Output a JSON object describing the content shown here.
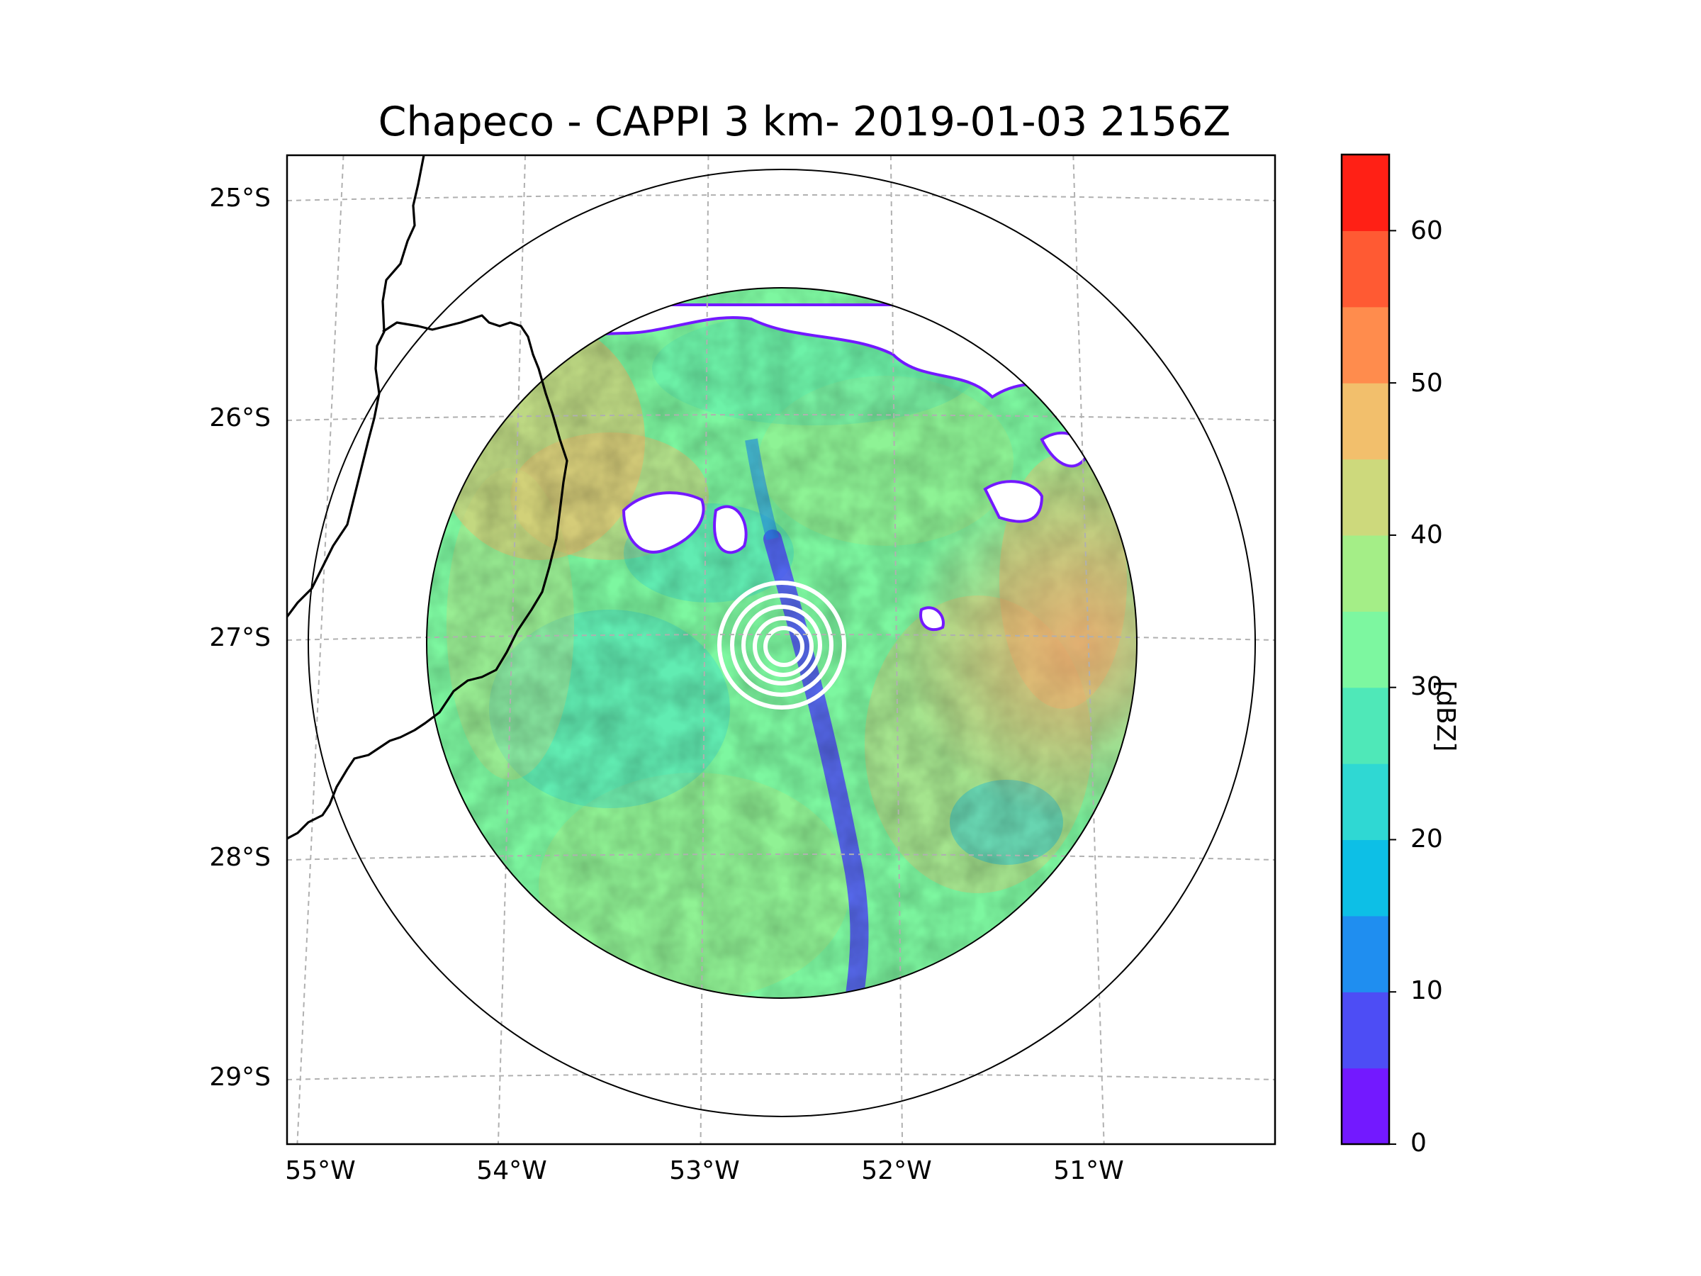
{
  "title": "Chapeco - CAPPI 3 km- 2019-01-03 2156Z",
  "map": {
    "lat_labels": [
      "25°S",
      "26°S",
      "27°S",
      "28°S",
      "29°S"
    ],
    "lon_labels": [
      "55°W",
      "54°W",
      "53°W",
      "52°W",
      "51°W"
    ],
    "lat_values": [
      -25,
      -26,
      -27,
      -28,
      -29
    ],
    "lon_values": [
      -55,
      -54,
      -53,
      -52,
      -51
    ],
    "radar_center": {
      "lon": -52.6,
      "lat": -27.0
    },
    "range_rings_km": [
      250,
      400
    ],
    "colors": {
      "grid": "#b0b0b0",
      "coast": "#000000",
      "ring": "#000000"
    }
  },
  "colorbar": {
    "label": "[dBZ]",
    "tick_labels": [
      "0",
      "10",
      "20",
      "30",
      "40",
      "50",
      "60"
    ],
    "min": 0,
    "max": 65,
    "step": 5,
    "colors": [
      "#7319ff",
      "#4d4df5",
      "#1f8ef0",
      "#0dbfe6",
      "#2fd8d3",
      "#4fe8b8",
      "#7df7a0",
      "#a4ee87",
      "#cdd97c",
      "#f2bf6c",
      "#ff8c4d",
      "#ff5a33",
      "#ff2015"
    ]
  },
  "chart_data": {
    "type": "heatmap",
    "title": "Chapeco - CAPPI 3 km- 2019-01-03 2156Z",
    "xlabel": "",
    "ylabel": "",
    "x_ticks": [
      "55°W",
      "54°W",
      "53°W",
      "52°W",
      "51°W"
    ],
    "y_ticks": [
      "25°S",
      "26°S",
      "27°S",
      "28°S",
      "29°S"
    ],
    "colorbar_label": "[dBZ]",
    "zlim": [
      0,
      65
    ],
    "dominant_range_dbz": [
      20,
      40
    ],
    "notes_regions": [
      {
        "name": "west/northwest sector",
        "dbz": 45
      },
      {
        "name": "southeast sector",
        "dbz": 45
      },
      {
        "name": "central north-south band",
        "dbz": 5
      },
      {
        "name": "general field",
        "dbz": 30
      }
    ]
  }
}
